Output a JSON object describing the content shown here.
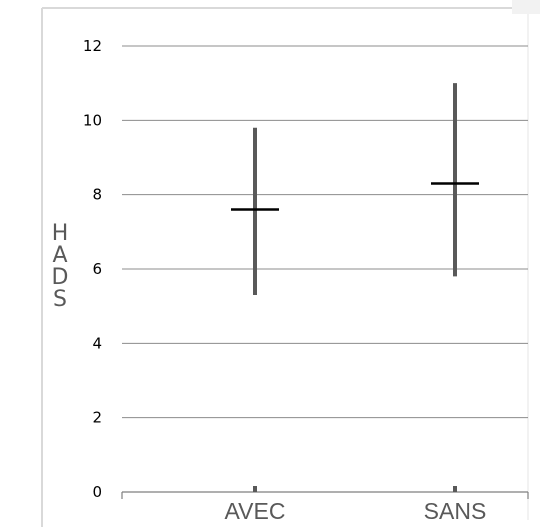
{
  "chart_data": {
    "type": "errorbar",
    "categories": [
      "AVEC",
      "SANS"
    ],
    "series": [
      {
        "mean": 7.6,
        "low": 5.3,
        "high": 9.8
      },
      {
        "mean": 8.3,
        "low": 5.8,
        "high": 11.0
      }
    ],
    "ylabel": "HADS",
    "ylabel_letters": [
      "H",
      "A",
      "D",
      "S"
    ],
    "xlabel": "",
    "title": "",
    "ylim": [
      0,
      12
    ],
    "yticks": [
      0,
      2,
      4,
      6,
      8,
      10,
      12
    ],
    "grid": true,
    "legend": "none"
  },
  "colors": {
    "range_line": "#595959",
    "mean_marker": "#000000",
    "grid": "#8c8c8c",
    "axis_text": "#000000",
    "category_text": "#595959",
    "frame": "#d9d9d9"
  }
}
